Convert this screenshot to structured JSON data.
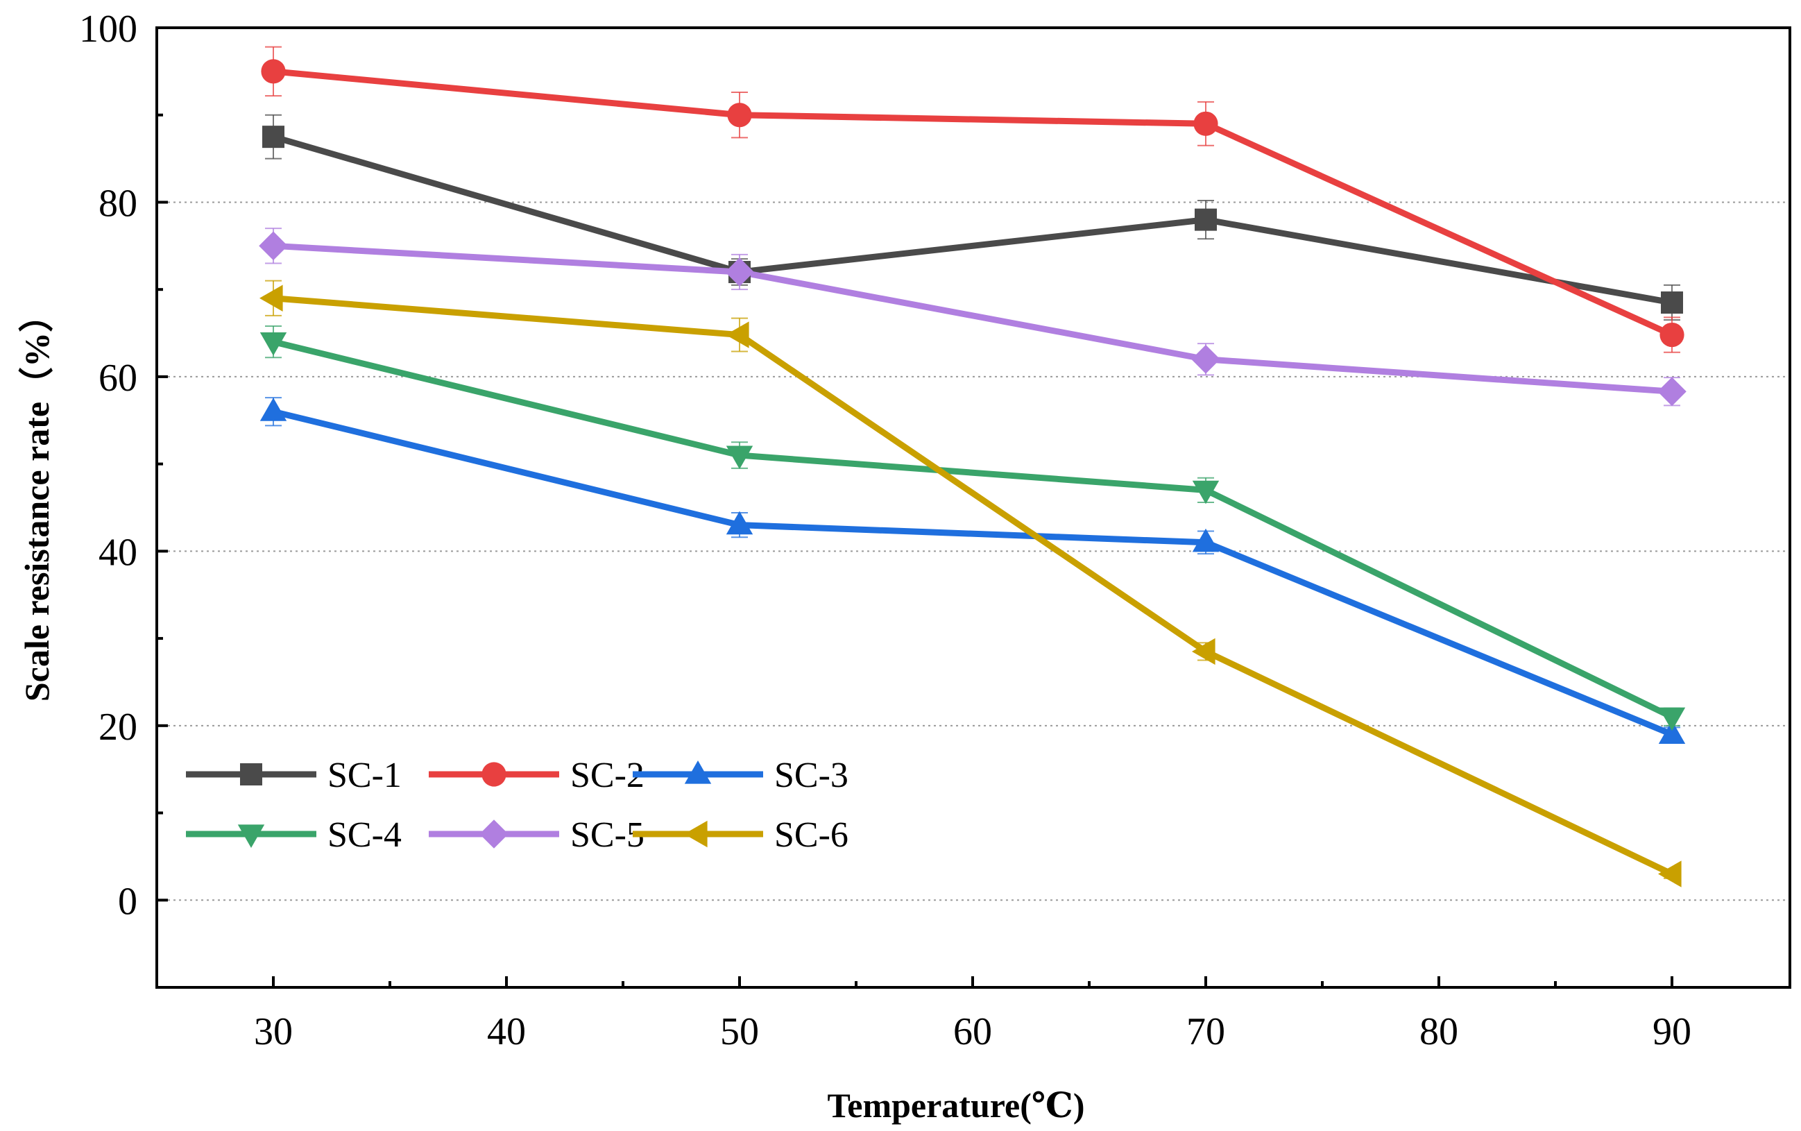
{
  "chart_data": {
    "type": "line",
    "title": "",
    "xlabel": "Temperature(℃)",
    "ylabel": "Scale resistance rate（%）",
    "x": [
      30,
      50,
      70,
      90
    ],
    "xlim": [
      25,
      90
    ],
    "ylim": [
      -10,
      100
    ],
    "xticks": [
      30,
      40,
      50,
      60,
      70,
      80,
      90
    ],
    "yticks": [
      0,
      20,
      40,
      60,
      80,
      100
    ],
    "grid": "horizontal-dotted",
    "legend": "bottom-left",
    "error_bars": true,
    "series": [
      {
        "name": "SC-1",
        "values": [
          87.5,
          72,
          78,
          68.5
        ],
        "errors": [
          2.5,
          1.5,
          2.2,
          2.0
        ],
        "color": "#4a4a4a",
        "marker": "square"
      },
      {
        "name": "SC-2",
        "values": [
          95,
          90,
          89,
          64.8
        ],
        "errors": [
          2.8,
          2.6,
          2.5,
          2.0
        ],
        "color": "#e84040",
        "marker": "circle"
      },
      {
        "name": "SC-3",
        "values": [
          56,
          43,
          41,
          19
        ],
        "errors": [
          1.6,
          1.4,
          1.3,
          0.8
        ],
        "color": "#1f6fde",
        "marker": "triangle-up"
      },
      {
        "name": "SC-4",
        "values": [
          64,
          51,
          47,
          21
        ],
        "errors": [
          1.8,
          1.5,
          1.4,
          1.0
        ],
        "color": "#3aa46a",
        "marker": "triangle-down"
      },
      {
        "name": "SC-5",
        "values": [
          75,
          72,
          62,
          58.3
        ],
        "errors": [
          2.0,
          2.0,
          1.8,
          1.6
        ],
        "color": "#b07fe0",
        "marker": "diamond"
      },
      {
        "name": "SC-6",
        "values": [
          69,
          64.8,
          28.5,
          3
        ],
        "errors": [
          2.0,
          1.9,
          1.0,
          0.5
        ],
        "color": "#c9a000",
        "marker": "triangle-left"
      }
    ]
  }
}
